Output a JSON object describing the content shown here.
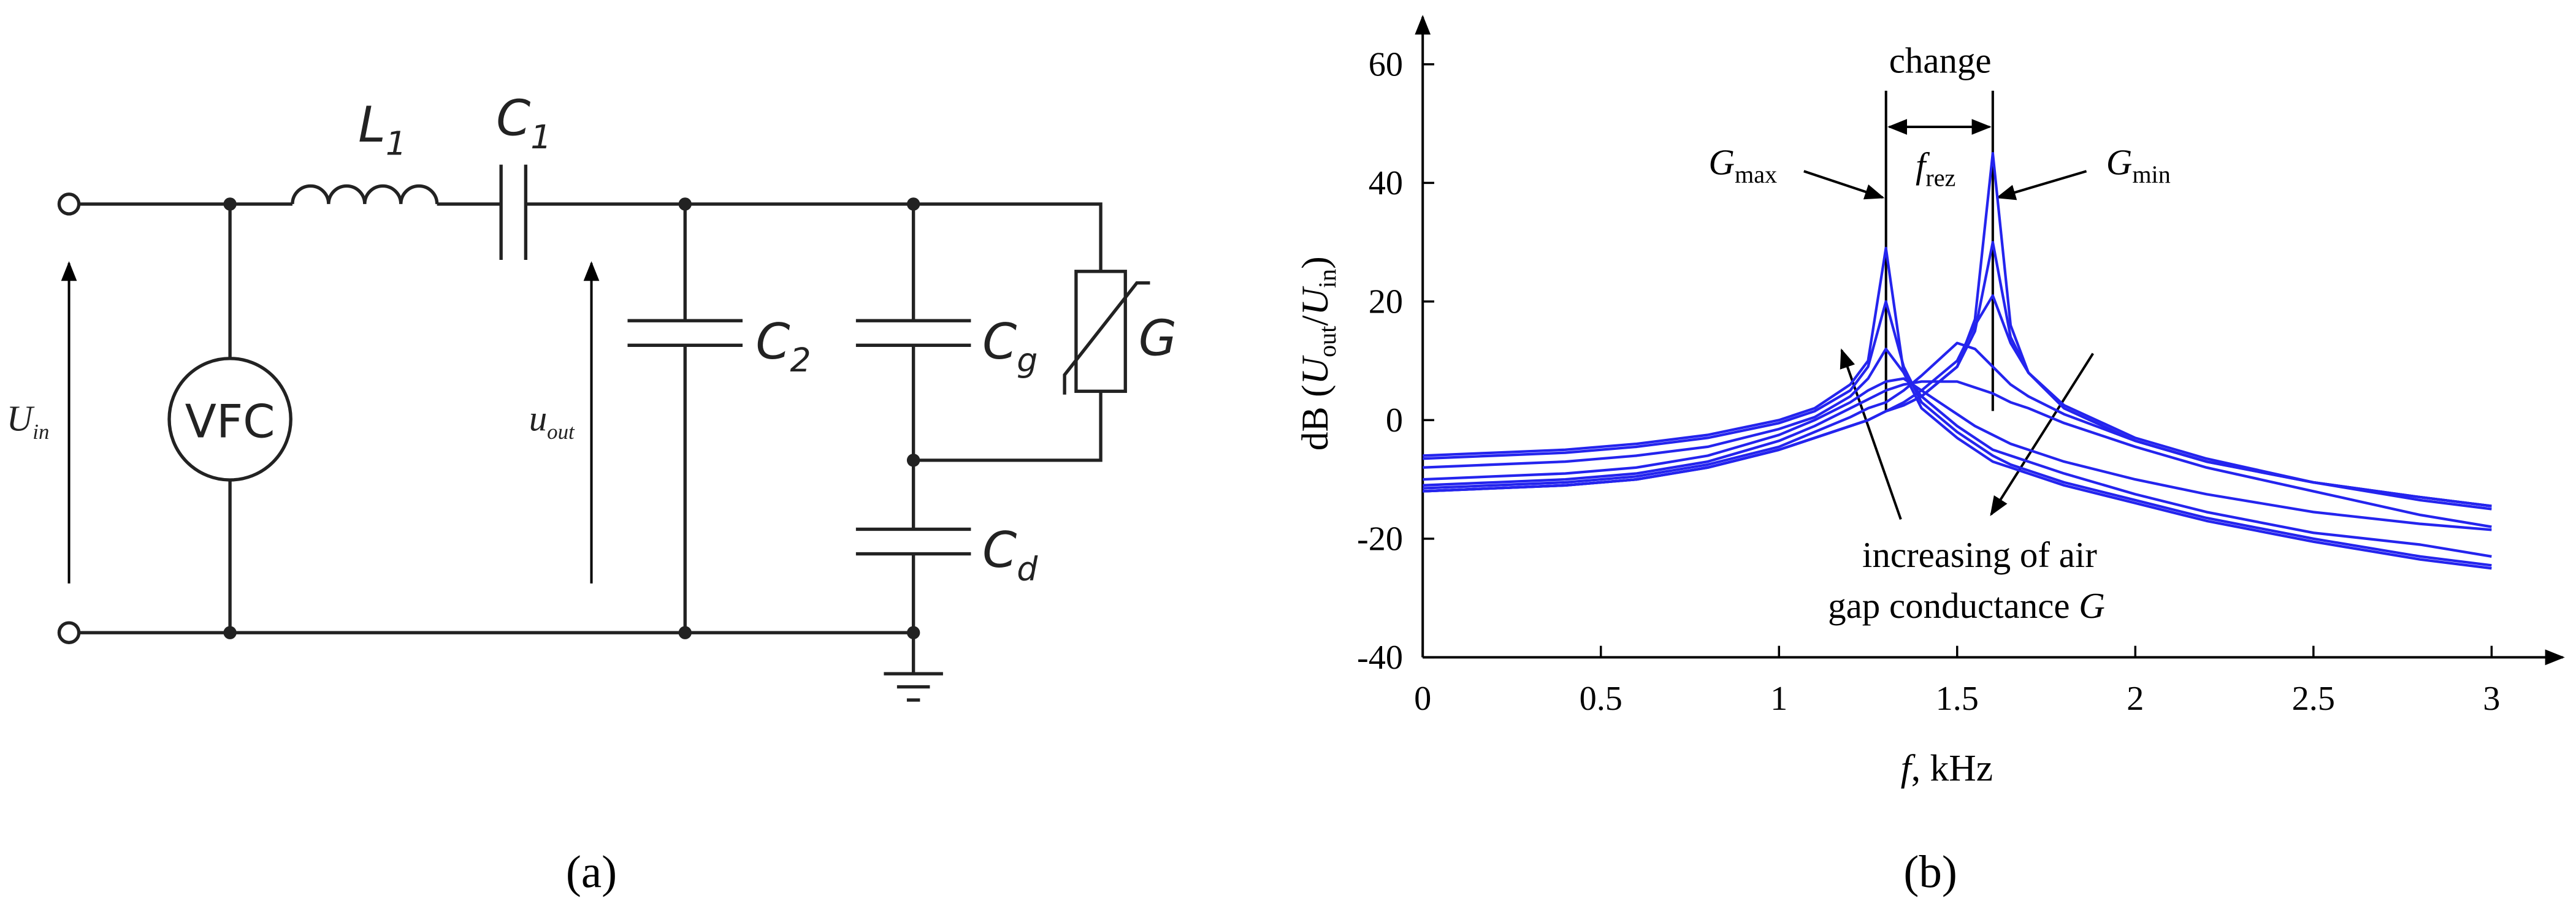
{
  "diagram": {
    "panel_label": "(a)",
    "source": "VFC",
    "inductor": {
      "main": "L",
      "sub": "1"
    },
    "c1": {
      "main": "C",
      "sub": "1"
    },
    "c2": {
      "main": "C",
      "sub": "2"
    },
    "cg": {
      "main": "C",
      "sub": "g"
    },
    "cd": {
      "main": "C",
      "sub": "d"
    },
    "conductance": "G",
    "u_in": {
      "main": "U",
      "sub": "in"
    },
    "u_out": {
      "main": "u",
      "sub": "out"
    }
  },
  "chart_data": {
    "type": "line",
    "panel_label": "(b)",
    "x_label": {
      "main": "f",
      "rest": ", kHz"
    },
    "y_label": {
      "pre": "dB (",
      "u1": "U",
      "s1": "out",
      "slash": "/",
      "u2": "U",
      "s2": "in",
      "post": ")"
    },
    "annotations": {
      "change": "change",
      "g_max": {
        "main": "G",
        "sub": "max"
      },
      "f_rez": {
        "main": "f",
        "sub": "rez"
      },
      "g_min": {
        "main": "G",
        "sub": "min"
      },
      "increasing_line1": "increasing of air",
      "increasing_line2": "gap conductance ",
      "increasing_G": "G"
    },
    "xlim": [
      0,
      3.2
    ],
    "ylim": [
      -40,
      68
    ],
    "xticks": [
      0,
      0.5,
      1,
      1.5,
      2,
      2.5,
      3
    ],
    "yticks": [
      -40,
      -20,
      0,
      20,
      40,
      60
    ],
    "x": [
      0,
      0.2,
      0.4,
      0.6,
      0.8,
      1.0,
      1.1,
      1.2,
      1.25,
      1.3,
      1.35,
      1.4,
      1.5,
      1.55,
      1.6,
      1.65,
      1.7,
      1.8,
      2.0,
      2.2,
      2.5,
      2.8,
      3.0
    ],
    "series": [
      {
        "color": "#2424ee",
        "values": [
          -6,
          -5.5,
          -5,
          -4,
          -2.5,
          0,
          2,
          6,
          10,
          29,
          8,
          2,
          -3,
          -5,
          -7,
          -8,
          -9,
          -11,
          -14,
          -17,
          -20.5,
          -23.5,
          -25
        ]
      },
      {
        "color": "#2424ee",
        "values": [
          -6.5,
          -6,
          -5.5,
          -4.5,
          -3,
          -0.5,
          1.5,
          5,
          9,
          20,
          9,
          3,
          -2,
          -4,
          -6,
          -7.5,
          -8.5,
          -10.5,
          -13.5,
          -16.5,
          -20,
          -23,
          -24.5
        ]
      },
      {
        "color": "#2424ee",
        "values": [
          -8,
          -7.5,
          -7,
          -6,
          -4.5,
          -1.5,
          0.5,
          4,
          7,
          12,
          8,
          4,
          -1,
          -3,
          -5,
          -6,
          -7,
          -9,
          -12.5,
          -15.5,
          -19,
          -21,
          -23
        ]
      },
      {
        "color": "#2424ee",
        "values": [
          -10,
          -9.5,
          -9,
          -8,
          -6,
          -2.5,
          0,
          3,
          5,
          6.5,
          7,
          5,
          1,
          -1,
          -2.5,
          -4,
          -5,
          -7,
          -10,
          -12.5,
          -15.5,
          -17.5,
          -18.5
        ]
      },
      {
        "color": "#2424ee",
        "values": [
          -11,
          -10.5,
          -10,
          -9,
          -7,
          -3.5,
          -1,
          2,
          3.5,
          5,
          6,
          6.5,
          6.5,
          5.5,
          4.5,
          3,
          2,
          -0.5,
          -4.5,
          -8,
          -12,
          -16,
          -18
        ]
      },
      {
        "color": "#2424ee",
        "values": [
          -11.5,
          -11,
          -10.5,
          -9.5,
          -7.5,
          -4.5,
          -2,
          0.5,
          2,
          3,
          5,
          7.5,
          13,
          12,
          9,
          6,
          4,
          1,
          -3.5,
          -7,
          -10.5,
          -13.5,
          -15
        ]
      },
      {
        "color": "#2424ee",
        "values": [
          -12,
          -11.5,
          -11,
          -10,
          -8,
          -5,
          -3,
          -1,
          0,
          1.5,
          3,
          5,
          10,
          16,
          21,
          13,
          8,
          2.5,
          -3,
          -6.5,
          -10.5,
          -13,
          -14.5
        ]
      },
      {
        "color": "#2424ee",
        "values": [
          -12,
          -11.5,
          -11,
          -10,
          -8,
          -5,
          -3,
          -1,
          0,
          1.5,
          2.5,
          4,
          9,
          15,
          30,
          14,
          8,
          2,
          -3.5,
          -7,
          -10.5,
          -13,
          -14.5
        ]
      },
      {
        "color": "#2424ee",
        "values": [
          -12,
          -11.5,
          -11,
          -10,
          -8,
          -5,
          -3,
          -1,
          0,
          1.5,
          2.5,
          4,
          9,
          17,
          45,
          16,
          8,
          2,
          -3.5,
          -7,
          -10.5,
          -13,
          -14.5
        ]
      }
    ]
  }
}
